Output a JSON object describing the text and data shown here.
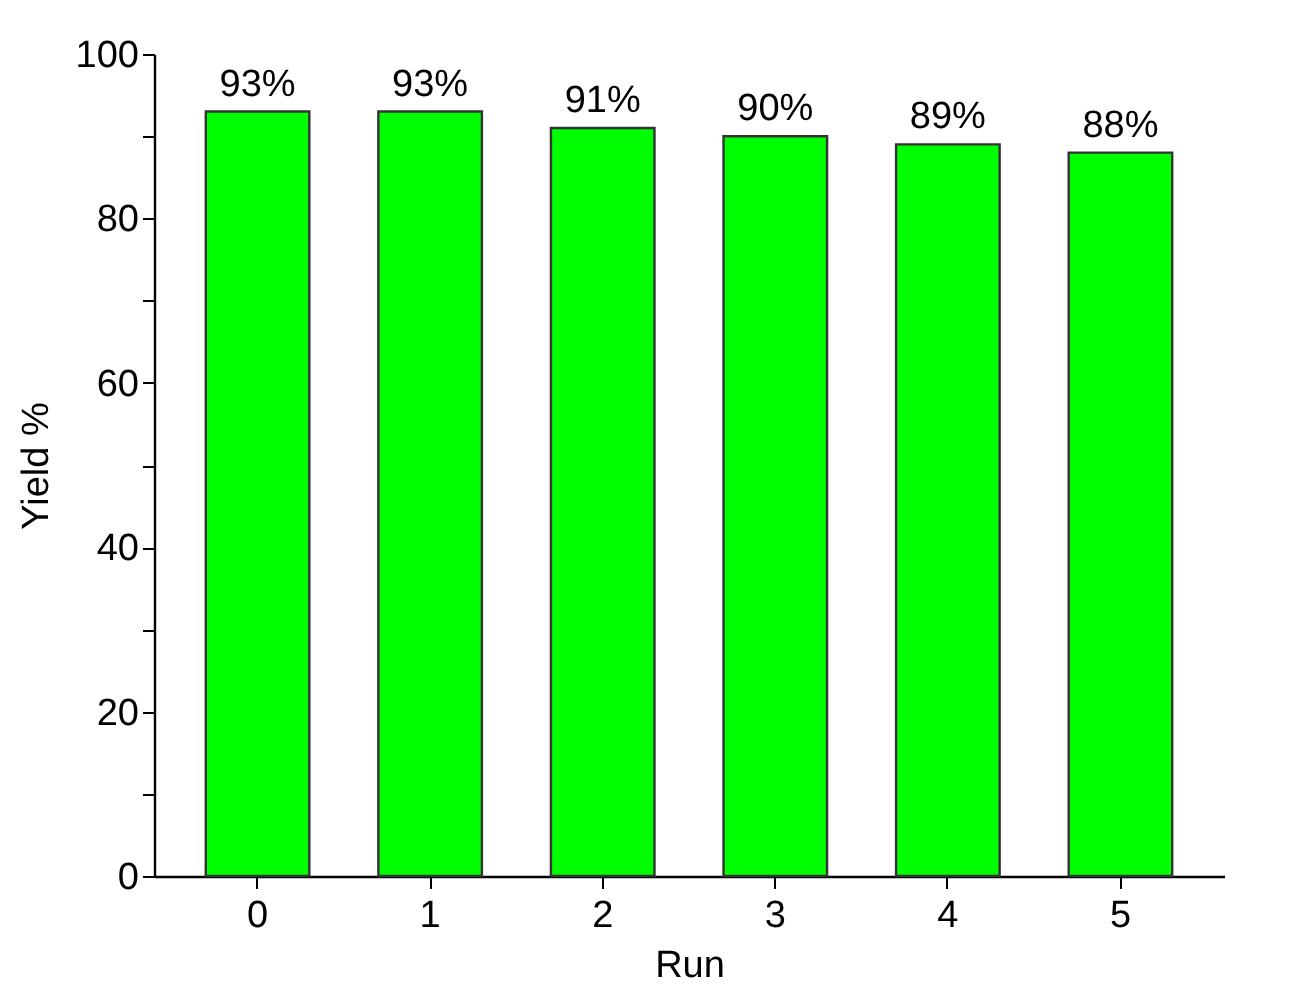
{
  "chart_data": {
    "type": "bar",
    "xlabel": "Run",
    "ylabel": "Yield %",
    "categories": [
      "0",
      "1",
      "2",
      "3",
      "4",
      "5"
    ],
    "values": [
      93,
      93,
      91,
      90,
      89,
      88
    ],
    "value_labels": [
      "93%",
      "93%",
      "91%",
      "90%",
      "89%",
      "88%"
    ],
    "color": "#00ff00",
    "ylim": [
      0,
      100
    ],
    "yticks": [
      0,
      {
        "value": 10,
        "label": null
      },
      20,
      {
        "value": 30,
        "label": null
      },
      40,
      {
        "value": 50,
        "label": null
      },
      60,
      {
        "value": 70,
        "label": null
      },
      80,
      {
        "value": 90,
        "label": null
      },
      100
    ],
    "grid": false
  }
}
